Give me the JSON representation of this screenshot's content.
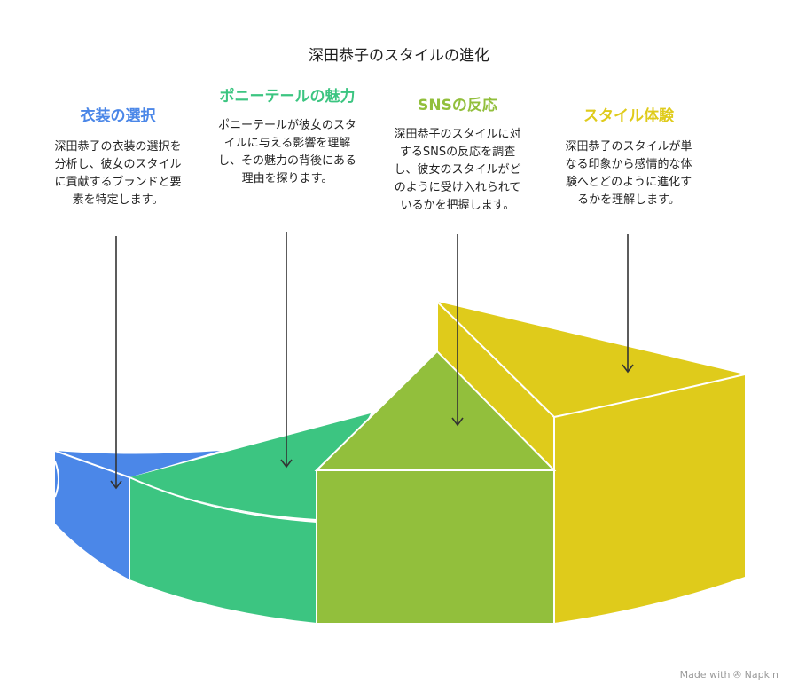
{
  "title": "深田恭子のスタイルの進化",
  "colors": {
    "blue": "#4b87e8",
    "green": "#3cc581",
    "olive": "#92bf3c",
    "yellow": "#dfcb1b"
  },
  "sections": [
    {
      "heading": "衣装の選択",
      "description": "深田恭子の衣装の選択を分析し、彼女のスタイルに貢献するブランドと要素を特定します。",
      "color": "#4b87e8"
    },
    {
      "heading": "ポニーテールの魅力",
      "description": "ポニーテールが彼女のスタイルに与える影響を理解し、その魅力の背後にある理由を探ります。",
      "color": "#3cc581"
    },
    {
      "heading": "SNSの反応",
      "description": "深田恭子のスタイルに対するSNSの反応を調査し、彼女のスタイルがどのように受け入れられているかを把握します。",
      "color": "#92bf3c"
    },
    {
      "heading": "スタイル体験",
      "description": "深田恭子のスタイルが単なる印象から感情的な体験へとどのように進化するかを理解します。",
      "color": "#dfcb1b"
    }
  ],
  "footer": {
    "made_with": "Made with",
    "brand": "Napkin"
  }
}
